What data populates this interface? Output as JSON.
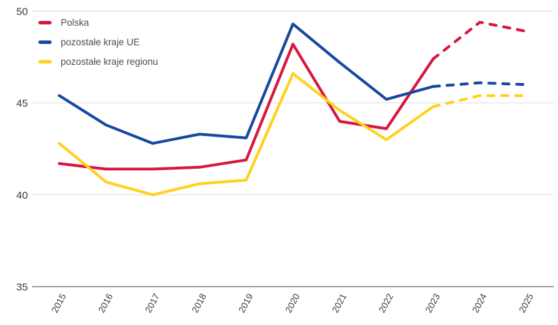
{
  "chart_data": {
    "type": "line",
    "title": "",
    "xlabel": "",
    "ylabel": "",
    "x_labels": [
      "2015",
      "2016",
      "2017",
      "2018",
      "2019",
      "2020",
      "2021",
      "2022",
      "2023",
      "2024",
      "2025"
    ],
    "ylim": [
      35,
      50
    ],
    "yticks": [
      50,
      45,
      40,
      35
    ],
    "grid": "horizontal",
    "legend_position": "top-left-inside",
    "style_note": "solid lines through 2023, dashed forecast 2023-2025",
    "solid_until_index": 8,
    "series": [
      {
        "name": "Polska",
        "color": "#d6173f",
        "values": [
          41.7,
          41.4,
          41.4,
          41.5,
          41.9,
          48.2,
          44.0,
          43.6,
          47.4,
          49.4,
          48.9
        ]
      },
      {
        "name": "pozostałe kraje UE",
        "color": "#16499e",
        "values": [
          45.4,
          43.8,
          42.8,
          43.3,
          43.1,
          49.3,
          47.2,
          45.2,
          45.9,
          46.1,
          46.0
        ]
      },
      {
        "name": "pozostałe kraje regionu",
        "color": "#ffd21e",
        "values": [
          42.8,
          40.7,
          40.0,
          40.6,
          40.8,
          46.6,
          44.6,
          43.0,
          44.8,
          45.4,
          45.4
        ]
      }
    ]
  },
  "colors": {
    "grid_light": "#dedede",
    "axis_line": "#a3a3a3",
    "tick_text": "#3c3c3c",
    "legend_text": "#4d4d4d",
    "background": "#ffffff"
  }
}
